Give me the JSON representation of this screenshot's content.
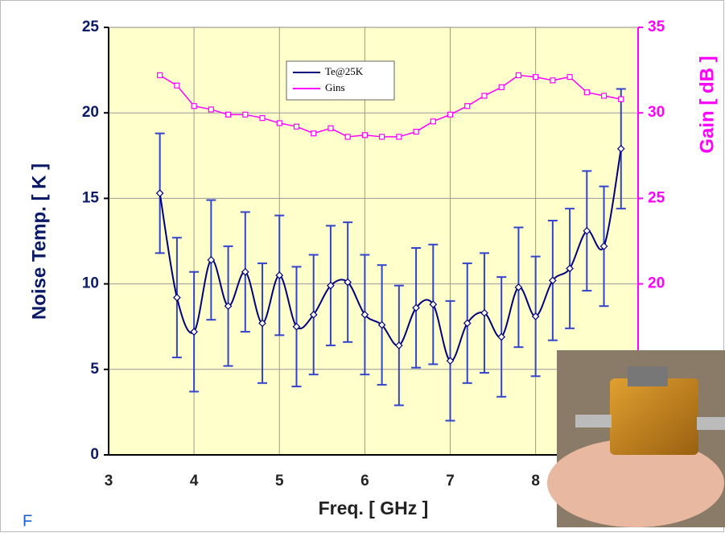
{
  "chart_data": {
    "type": "line",
    "xlabel": "Freq. [ GHz ]",
    "ylabel": "Noise Temp. [ K ]",
    "y2label": "Gain [ dB ]",
    "corner_text": "F",
    "xlim": [
      3,
      9.2
    ],
    "xticks": [
      3,
      4,
      5,
      6,
      7,
      8
    ],
    "ylim": [
      0,
      25
    ],
    "yticks": [
      0,
      5,
      10,
      15,
      20,
      25
    ],
    "y2lim": [
      10,
      35
    ],
    "y2ticks": [
      20,
      25,
      30,
      35
    ],
    "grid": true,
    "legend": "top-center",
    "x": [
      3.6,
      3.8,
      4.0,
      4.2,
      4.4,
      4.6,
      4.8,
      5.0,
      5.2,
      5.4,
      5.6,
      5.8,
      6.0,
      6.2,
      6.4,
      6.6,
      6.8,
      7.0,
      7.2,
      7.4,
      7.6,
      7.8,
      8.0,
      8.2,
      8.4,
      8.6,
      8.8,
      9.0
    ],
    "series": [
      {
        "name": "Te@25K",
        "color": "#00007f",
        "axis": "y",
        "smooth": true,
        "values": [
          15.3,
          9.2,
          7.2,
          11.4,
          8.7,
          10.7,
          7.7,
          10.5,
          7.5,
          8.2,
          9.9,
          10.1,
          8.2,
          7.6,
          6.4,
          8.6,
          8.8,
          5.5,
          7.7,
          8.3,
          6.9,
          9.8,
          8.1,
          10.2,
          10.9,
          13.1,
          12.2,
          17.9
        ],
        "errors": [
          3.5,
          3.5,
          3.5,
          3.5,
          3.5,
          3.5,
          3.5,
          3.5,
          3.5,
          3.5,
          3.5,
          3.5,
          3.5,
          3.5,
          3.5,
          3.5,
          3.5,
          3.5,
          3.5,
          3.5,
          3.5,
          3.5,
          3.5,
          3.5,
          3.5,
          3.5,
          3.5,
          3.5
        ],
        "error_color": "#3344cc"
      },
      {
        "name": "Gins",
        "color": "#ff00ff",
        "axis": "y2",
        "smooth": false,
        "values": [
          32.2,
          31.6,
          30.4,
          30.2,
          29.9,
          29.9,
          29.7,
          29.4,
          29.2,
          28.8,
          29.1,
          28.6,
          28.7,
          28.6,
          28.6,
          28.9,
          29.5,
          29.9,
          30.4,
          31.0,
          31.5,
          32.2,
          32.1,
          31.9,
          32.1,
          31.2,
          31.0,
          30.8
        ]
      }
    ]
  }
}
